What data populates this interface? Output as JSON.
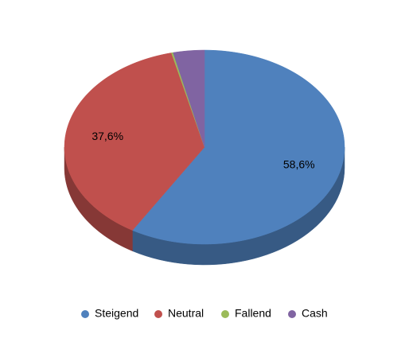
{
  "chart_data": {
    "type": "pie",
    "categories": [
      "Steigend",
      "Neutral",
      "Fallend",
      "Cash"
    ],
    "values": [
      58.6,
      37.6,
      0.2,
      3.6
    ],
    "value_labels": [
      "58,6%",
      "37,6%",
      null,
      null
    ],
    "colors": [
      "#4f81bd",
      "#c0504d",
      "#9bbb59",
      "#8064a2"
    ],
    "legend": "bottom"
  }
}
